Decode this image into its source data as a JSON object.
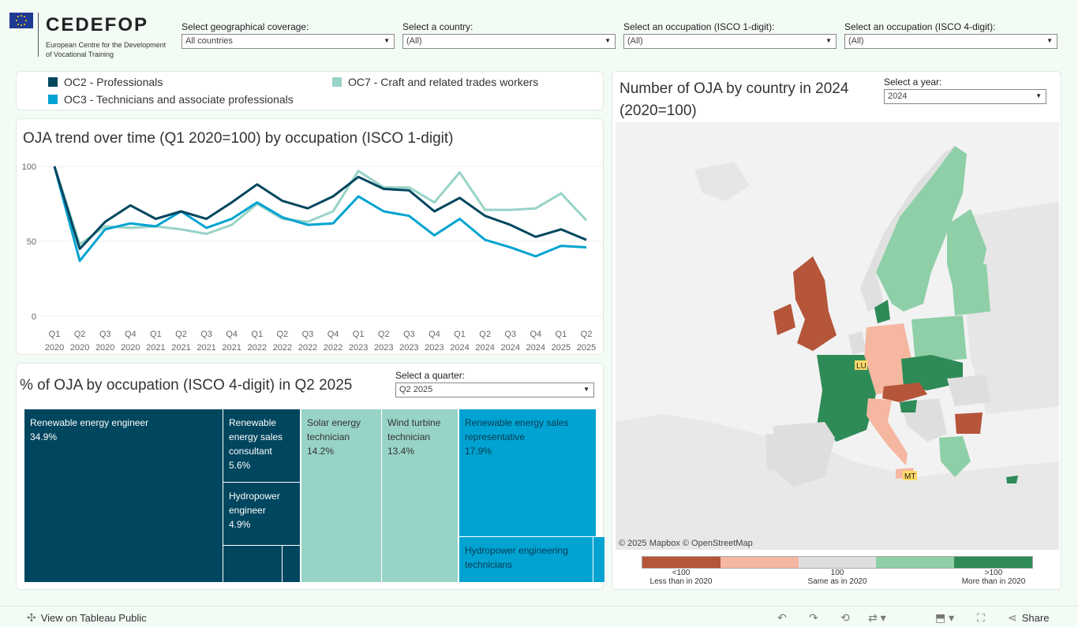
{
  "header": {
    "logo_name": "CEDEFOP",
    "logo_subtitle": "European Centre for the Development of Vocational Training"
  },
  "filters": [
    {
      "label": "Select geographical coverage:",
      "value": "All countries"
    },
    {
      "label": "Select a country:",
      "value": "(All)"
    },
    {
      "label": "Select an occupation (ISCO 1-digit):",
      "value": "(All)"
    },
    {
      "label": "Select an occupation (ISCO 4-digit):",
      "value": "(All)"
    }
  ],
  "legend": {
    "items": [
      {
        "label": "OC2 - Professionals",
        "color": "#00465f"
      },
      {
        "label": "OC3 - Technicians and associate professionals",
        "color": "#00a3d1"
      },
      {
        "label": "OC7 - Craft and related trades workers",
        "color": "#98d3c7"
      }
    ]
  },
  "trend": {
    "title": "OJA trend over time (Q1 2020=100) by occupation (ISCO 1-digit)"
  },
  "chart_data": {
    "type": "line",
    "title": "OJA trend over time (Q1 2020=100) by occupation (ISCO 1-digit)",
    "x_quarters": [
      "Q1",
      "Q2",
      "Q3",
      "Q4",
      "Q1",
      "Q2",
      "Q3",
      "Q4",
      "Q1",
      "Q2",
      "Q3",
      "Q4",
      "Q1",
      "Q2",
      "Q3",
      "Q4",
      "Q1",
      "Q2",
      "Q3",
      "Q4",
      "Q1",
      "Q2"
    ],
    "x_years": [
      "2020",
      "2020",
      "2020",
      "2020",
      "2021",
      "2021",
      "2021",
      "2021",
      "2022",
      "2022",
      "2022",
      "2022",
      "2023",
      "2023",
      "2023",
      "2023",
      "2024",
      "2024",
      "2024",
      "2024",
      "2025",
      "2025"
    ],
    "yticks": [
      0,
      50,
      100
    ],
    "ylim": [
      0,
      100
    ],
    "series": [
      {
        "name": "OC2 - Professionals",
        "color": "#00465f",
        "values": [
          100,
          45,
          63,
          74,
          65,
          70,
          65,
          76,
          88,
          77,
          72,
          80,
          93,
          85,
          84,
          70,
          79,
          67,
          61,
          53,
          58,
          51
        ]
      },
      {
        "name": "OC3 - Technicians and associate professionals",
        "color": "#00a3d1",
        "values": [
          100,
          37,
          58,
          62,
          60,
          70,
          59,
          65,
          76,
          66,
          61,
          62,
          80,
          70,
          67,
          54,
          65,
          51,
          46,
          40,
          47,
          46
        ]
      },
      {
        "name": "OC7 - Craft and related trades workers",
        "color": "#98d3c7",
        "values": [
          100,
          48,
          60,
          59,
          60,
          58,
          55,
          61,
          75,
          65,
          63,
          70,
          97,
          86,
          86,
          76,
          96,
          71,
          71,
          72,
          82,
          64
        ]
      }
    ]
  },
  "treemap": {
    "title": "% of OJA by occupation (ISCO 4-digit) in Q2 2025",
    "quarter_label": "Select a quarter:",
    "quarter_value": "Q2 2025",
    "cells": [
      {
        "name": "Renewable energy engineer",
        "value": "34.9%"
      },
      {
        "name": "Renewable energy sales consultant",
        "value": "5.6%"
      },
      {
        "name": "Hydropower engineer",
        "value": "4.9%"
      },
      {
        "name": "Solar energy technician",
        "value": "14.2%"
      },
      {
        "name": "Wind turbine technician",
        "value": "13.4%"
      },
      {
        "name": "Renewable energy sales representative",
        "value": "17.9%"
      },
      {
        "name": "Hydropower engineering technicians",
        "value": ""
      }
    ]
  },
  "map": {
    "title": "Number of OJA by country in 2024 (2020=100)",
    "year_label": "Select a year:",
    "year_value": "2024",
    "attribution": "© 2025 Mapbox  © OpenStreetMap",
    "badges": [
      "LU",
      "MT"
    ],
    "legend": [
      {
        "label": "<100",
        "sub": "Less than in 2020",
        "color": "#b5553a"
      },
      {
        "label": "",
        "sub": "",
        "color": "#f5b7a0"
      },
      {
        "label": "100",
        "sub": "Same as in 2020",
        "color": "#dedede"
      },
      {
        "label": "",
        "sub": "",
        "color": "#8ecfa7"
      },
      {
        "label": ">100",
        "sub": "More than in 2020",
        "color": "#2e8b57"
      }
    ]
  },
  "toolbar": {
    "view_label": "View on Tableau Public",
    "share_label": "Share"
  }
}
